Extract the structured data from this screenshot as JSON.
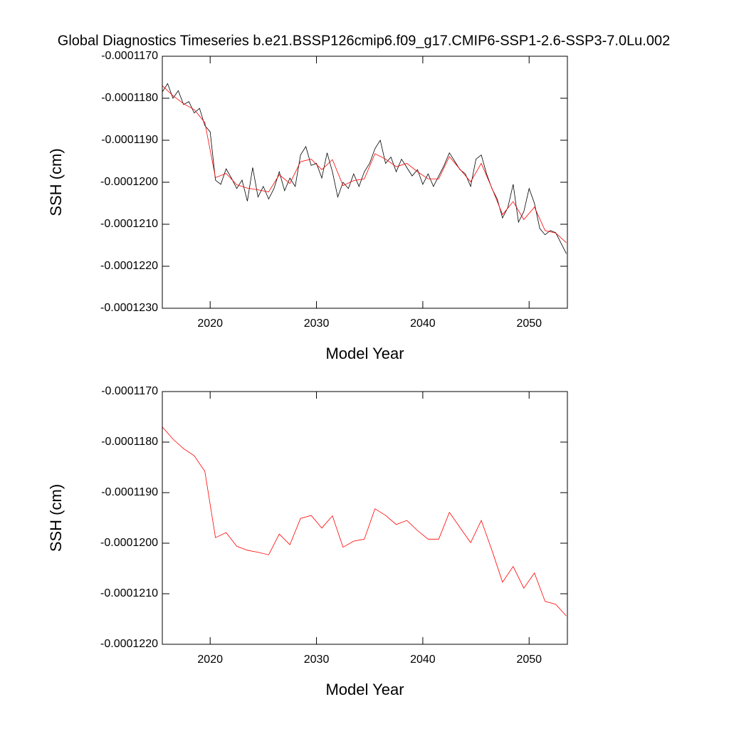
{
  "chart_data": [
    {
      "type": "line",
      "title": "Global Diagnostics Timeseries b.e21.BSSP126cmip6.f09_g17.CMIP6-SSP1-2.6-SSP3-7.0Lu.002",
      "y_label": "SSH (cm)",
      "x_label": "Model Year",
      "xlim": [
        2015.5,
        2053.6
      ],
      "xticks": [
        2020,
        2030,
        2040,
        2050
      ],
      "ylim": [
        -0.000117,
        -0.000123
      ],
      "yticks": [
        {
          "value": -0.000117,
          "label": "-0.0001170"
        },
        {
          "value": -0.000118,
          "label": "-0.0001180"
        },
        {
          "value": -0.000119,
          "label": "-0.0001190"
        },
        {
          "value": -0.00012,
          "label": "-0.0001200"
        },
        {
          "value": -0.000121,
          "label": "-0.0001210"
        },
        {
          "value": -0.000122,
          "label": "-0.0001220"
        },
        {
          "value": -0.000123,
          "label": "-0.0001230"
        }
      ],
      "series": [
        {
          "color": "#000000",
          "x": [
            2015.5,
            2016,
            2016.5,
            2017,
            2017.5,
            2018,
            2018.5,
            2019,
            2019.5,
            2020,
            2020.5,
            2021,
            2021.5,
            2022,
            2022.5,
            2023,
            2023.5,
            2024,
            2024.5,
            2025,
            2025.5,
            2026,
            2026.5,
            2027,
            2027.5,
            2028,
            2028.5,
            2029,
            2029.5,
            2030,
            2030.5,
            2031,
            2031.5,
            2032,
            2032.5,
            2033,
            2033.5,
            2034,
            2034.5,
            2035,
            2035.5,
            2036,
            2036.5,
            2037,
            2037.5,
            2038,
            2038.5,
            2039,
            2039.5,
            2040,
            2040.5,
            2041,
            2041.5,
            2042,
            2042.5,
            2043,
            2043.5,
            2044,
            2044.5,
            2045,
            2045.5,
            2046,
            2046.5,
            2047,
            2047.5,
            2048,
            2048.5,
            2049,
            2049.5,
            2050,
            2050.5,
            2051,
            2051.5,
            2052,
            2052.5,
            2053,
            2053.5
          ],
          "values": [
            -0.00011785,
            -0.00011765,
            -0.000118,
            -0.00011782,
            -0.00011815,
            -0.00011808,
            -0.00011835,
            -0.00011824,
            -0.00011865,
            -0.0001188,
            -0.00011995,
            -0.00012005,
            -0.00011968,
            -0.0001199,
            -0.00012015,
            -0.00011995,
            -0.00012045,
            -0.00011965,
            -0.00012035,
            -0.0001201,
            -0.0001204,
            -0.00012015,
            -0.00011975,
            -0.0001202,
            -0.0001199,
            -0.0001201,
            -0.00011935,
            -0.00011915,
            -0.0001196,
            -0.00011955,
            -0.0001199,
            -0.0001193,
            -0.00011975,
            -0.00012035,
            -0.00012,
            -0.00012015,
            -0.0001198,
            -0.0001201,
            -0.00011975,
            -0.00011955,
            -0.0001192,
            -0.000119,
            -0.00011955,
            -0.0001194,
            -0.00011975,
            -0.00011945,
            -0.00011965,
            -0.00011985,
            -0.0001197,
            -0.00012005,
            -0.0001198,
            -0.0001201,
            -0.00011985,
            -0.0001196,
            -0.0001193,
            -0.0001195,
            -0.0001197,
            -0.0001198,
            -0.0001201,
            -0.00011945,
            -0.00011935,
            -0.0001198,
            -0.00012015,
            -0.0001204,
            -0.00012085,
            -0.0001206,
            -0.00012005,
            -0.00012095,
            -0.0001207,
            -0.00012015,
            -0.0001205,
            -0.0001211,
            -0.00012125,
            -0.00012115,
            -0.0001212,
            -0.00012145,
            -0.0001217
          ]
        },
        {
          "color": "#ff0000",
          "x": [
            2015.5,
            2016.5,
            2017.5,
            2018.5,
            2019.5,
            2020.5,
            2021.5,
            2022.5,
            2023.5,
            2024.5,
            2025.5,
            2026.5,
            2027.5,
            2028.5,
            2029.5,
            2030.5,
            2031.5,
            2032.5,
            2033.5,
            2034.5,
            2035.5,
            2036.5,
            2037.5,
            2038.5,
            2039.5,
            2040.5,
            2041.5,
            2042.5,
            2043.5,
            2044.5,
            2045.5,
            2046.5,
            2047.5,
            2048.5,
            2049.5,
            2050.5,
            2051.5,
            2052.5,
            2053.5
          ],
          "values": [
            -0.0001177,
            -0.00011794,
            -0.00011813,
            -0.00011827,
            -0.00011858,
            -0.00011989,
            -0.00011979,
            -0.00012006,
            -0.00012014,
            -0.00012018,
            -0.00012023,
            -0.00011982,
            -0.00012003,
            -0.00011951,
            -0.00011945,
            -0.0001197,
            -0.00011946,
            -0.00012008,
            -0.00011996,
            -0.00011992,
            -0.00011932,
            -0.00011945,
            -0.00011963,
            -0.00011955,
            -0.00011975,
            -0.00011992,
            -0.00011992,
            -0.00011939,
            -0.00011969,
            -0.00011999,
            -0.00011955,
            -0.00012014,
            -0.00012077,
            -0.00012046,
            -0.00012089,
            -0.00012059,
            -0.00012115,
            -0.00012121,
            -0.00012144
          ]
        }
      ]
    },
    {
      "type": "line",
      "y_label": "SSH (cm)",
      "x_label": "Model Year",
      "xlim": [
        2015.5,
        2053.6
      ],
      "xticks": [
        2020,
        2030,
        2040,
        2050
      ],
      "ylim": [
        -0.000117,
        -0.000122
      ],
      "yticks": [
        {
          "value": -0.000117,
          "label": "-0.0001170"
        },
        {
          "value": -0.000118,
          "label": "-0.0001180"
        },
        {
          "value": -0.000119,
          "label": "-0.0001190"
        },
        {
          "value": -0.00012,
          "label": "-0.0001200"
        },
        {
          "value": -0.000121,
          "label": "-0.0001210"
        },
        {
          "value": -0.000122,
          "label": "-0.0001220"
        }
      ],
      "series": [
        {
          "color": "#ff0000",
          "x": [
            2015.5,
            2016.5,
            2017.5,
            2018.5,
            2019.5,
            2020.5,
            2021.5,
            2022.5,
            2023.5,
            2024.5,
            2025.5,
            2026.5,
            2027.5,
            2028.5,
            2029.5,
            2030.5,
            2031.5,
            2032.5,
            2033.5,
            2034.5,
            2035.5,
            2036.5,
            2037.5,
            2038.5,
            2039.5,
            2040.5,
            2041.5,
            2042.5,
            2043.5,
            2044.5,
            2045.5,
            2046.5,
            2047.5,
            2048.5,
            2049.5,
            2050.5,
            2051.5,
            2052.5,
            2053.5
          ],
          "values": [
            -0.0001177,
            -0.00011794,
            -0.00011813,
            -0.00011827,
            -0.00011858,
            -0.00011989,
            -0.00011979,
            -0.00012006,
            -0.00012014,
            -0.00012018,
            -0.00012023,
            -0.00011982,
            -0.00012003,
            -0.00011951,
            -0.00011945,
            -0.0001197,
            -0.00011946,
            -0.00012008,
            -0.00011996,
            -0.00011992,
            -0.00011932,
            -0.00011945,
            -0.00011963,
            -0.00011955,
            -0.00011975,
            -0.00011992,
            -0.00011992,
            -0.00011939,
            -0.00011969,
            -0.00011999,
            -0.00011955,
            -0.00012014,
            -0.00012077,
            -0.00012046,
            -0.00012089,
            -0.00012059,
            -0.00012115,
            -0.00012121,
            -0.00012144
          ]
        }
      ]
    }
  ]
}
